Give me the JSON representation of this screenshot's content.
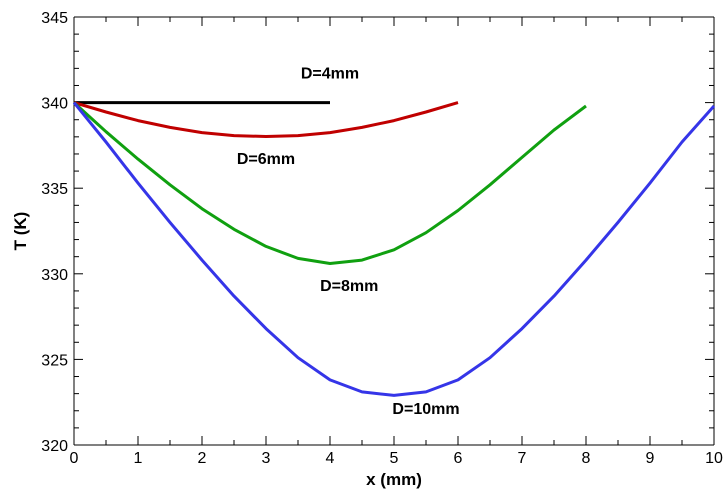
{
  "chart_data": {
    "type": "line",
    "title": "",
    "xlabel": "x (mm)",
    "ylabel": "T (K)",
    "xlim": [
      0,
      10
    ],
    "ylim": [
      320,
      345
    ],
    "xticks": [
      "0",
      "1",
      "2",
      "3",
      "4",
      "5",
      "6",
      "7",
      "8",
      "9",
      "10"
    ],
    "yticks": [
      "320",
      "325",
      "330",
      "335",
      "340",
      "345"
    ],
    "grid": false,
    "series": [
      {
        "name": "D=4mm",
        "color": "#000000",
        "x": [
          0,
          4
        ],
        "y": [
          340,
          340
        ]
      },
      {
        "name": "D=6mm",
        "color": "#c00000",
        "x": [
          0,
          0.5,
          1,
          1.5,
          2,
          2.5,
          3,
          3.5,
          4,
          4.5,
          5,
          5.5,
          6
        ],
        "y": [
          340,
          339.45,
          338.95,
          338.55,
          338.25,
          338.07,
          338.02,
          338.07,
          338.25,
          338.55,
          338.95,
          339.45,
          340
        ]
      },
      {
        "name": "D=8mm",
        "color": "#10a010",
        "x": [
          0,
          0.5,
          1,
          1.5,
          2,
          2.5,
          3,
          3.5,
          4,
          4.5,
          5,
          5.5,
          6,
          6.5,
          7,
          7.5,
          8
        ],
        "y": [
          340,
          338.3,
          336.7,
          335.2,
          333.8,
          332.6,
          331.6,
          330.9,
          330.6,
          330.8,
          331.4,
          332.4,
          333.7,
          335.2,
          336.8,
          338.4,
          339.8
        ]
      },
      {
        "name": "D=10mm",
        "color": "#3535e8",
        "x": [
          0,
          0.5,
          1,
          1.5,
          2,
          2.5,
          3,
          3.5,
          4,
          4.5,
          5,
          5.5,
          6,
          6.5,
          7,
          7.5,
          8,
          8.5,
          9,
          9.5,
          10
        ],
        "y": [
          340,
          337.7,
          335.3,
          333.0,
          330.8,
          328.7,
          326.8,
          325.1,
          323.8,
          323.1,
          322.9,
          323.1,
          323.8,
          325.1,
          326.8,
          328.7,
          330.8,
          333.0,
          335.3,
          337.7,
          339.8
        ]
      }
    ],
    "annotations": [
      {
        "text": "D=4mm",
        "x": 4.0,
        "y": 341.4
      },
      {
        "text": "D=6mm",
        "x": 3.0,
        "y": 336.4
      },
      {
        "text": "D=8mm",
        "x": 4.3,
        "y": 329.0
      },
      {
        "text": "D=10mm",
        "x": 5.5,
        "y": 321.8
      }
    ]
  }
}
